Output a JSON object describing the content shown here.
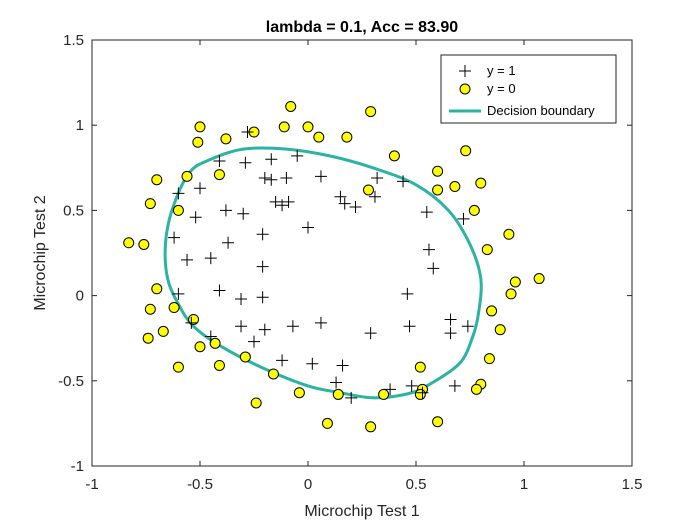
{
  "chart_data": {
    "type": "scatter",
    "title": "lambda = 0.1, Acc = 83.90",
    "xlabel": "Microchip Test 1",
    "ylabel": "Microchip Test 2",
    "xlim": [
      -1,
      1.5
    ],
    "ylim": [
      -1,
      1.5
    ],
    "xticks": [
      -1,
      -0.5,
      0,
      0.5,
      1,
      1.5
    ],
    "yticks": [
      -1,
      -0.5,
      0,
      0.5,
      1,
      1.5
    ],
    "xtick_labels": [
      "-1",
      "-0.5",
      "0",
      "0.5",
      "1",
      "1.5"
    ],
    "ytick_labels": [
      "-1",
      "-0.5",
      "0",
      "0.5",
      "1",
      "1.5"
    ],
    "grid": false,
    "legend_position": "top-right",
    "colors": {
      "positive_marker": "#000000",
      "negative_fill": "#ffff00",
      "negative_edge": "#000000",
      "boundary": "#2bb3a3",
      "axes": "#262626"
    },
    "series": [
      {
        "name": "y = 1",
        "marker": "plus",
        "points": [
          [
            -0.28,
            0.96
          ],
          [
            -0.41,
            0.79
          ],
          [
            -0.29,
            0.78
          ],
          [
            -0.17,
            0.8
          ],
          [
            -0.05,
            0.82
          ],
          [
            -0.2,
            0.69
          ],
          [
            -0.17,
            0.68
          ],
          [
            -0.1,
            0.69
          ],
          [
            -0.5,
            0.63
          ],
          [
            -0.6,
            0.6
          ],
          [
            -0.52,
            0.46
          ],
          [
            -0.38,
            0.5
          ],
          [
            -0.3,
            0.48
          ],
          [
            -0.15,
            0.55
          ],
          [
            -0.09,
            0.55
          ],
          [
            -0.21,
            0.36
          ],
          [
            -0.37,
            0.31
          ],
          [
            -0.12,
            0.53
          ],
          [
            0.06,
            0.7
          ],
          [
            0.15,
            0.58
          ],
          [
            0.17,
            0.54
          ],
          [
            0.22,
            0.52
          ],
          [
            0.32,
            0.69
          ],
          [
            0.31,
            0.58
          ],
          [
            0.44,
            0.67
          ],
          [
            0.55,
            0.49
          ],
          [
            0.72,
            0.45
          ],
          [
            -0.62,
            0.34
          ],
          [
            -0.56,
            0.21
          ],
          [
            -0.45,
            0.22
          ],
          [
            -0.21,
            0.17
          ],
          [
            -0.6,
            0.01
          ],
          [
            -0.41,
            0.03
          ],
          [
            -0.31,
            -0.02
          ],
          [
            -0.21,
            -0.01
          ],
          [
            0.0,
            0.4
          ],
          [
            0.56,
            0.27
          ],
          [
            0.58,
            0.16
          ],
          [
            0.46,
            0.01
          ],
          [
            -0.54,
            -0.16
          ],
          [
            -0.45,
            -0.24
          ],
          [
            -0.31,
            -0.18
          ],
          [
            -0.25,
            -0.27
          ],
          [
            -0.2,
            -0.2
          ],
          [
            -0.07,
            -0.18
          ],
          [
            0.06,
            -0.16
          ],
          [
            0.16,
            -0.41
          ],
          [
            0.29,
            -0.22
          ],
          [
            0.47,
            -0.18
          ],
          [
            0.66,
            -0.14
          ],
          [
            0.74,
            -0.18
          ],
          [
            0.66,
            -0.22
          ],
          [
            -0.12,
            -0.38
          ],
          [
            0.02,
            -0.4
          ],
          [
            0.13,
            -0.51
          ],
          [
            0.2,
            -0.6
          ],
          [
            0.38,
            -0.55
          ],
          [
            0.48,
            -0.53
          ],
          [
            0.53,
            -0.57
          ],
          [
            0.68,
            -0.53
          ]
        ]
      },
      {
        "name": "y = 0",
        "marker": "circle",
        "points": [
          [
            -0.08,
            1.11
          ],
          [
            -0.11,
            0.99
          ],
          [
            0.0,
            0.99
          ],
          [
            0.29,
            1.08
          ],
          [
            -0.5,
            0.99
          ],
          [
            -0.38,
            0.92
          ],
          [
            -0.25,
            0.96
          ],
          [
            0.05,
            0.93
          ],
          [
            0.18,
            0.93
          ],
          [
            -0.51,
            0.9
          ],
          [
            0.4,
            0.82
          ],
          [
            0.6,
            0.73
          ],
          [
            0.73,
            0.85
          ],
          [
            0.6,
            0.62
          ],
          [
            0.68,
            0.64
          ],
          [
            0.28,
            0.62
          ],
          [
            -0.41,
            0.71
          ],
          [
            -0.56,
            0.7
          ],
          [
            -0.7,
            0.68
          ],
          [
            0.8,
            0.66
          ],
          [
            -0.73,
            0.54
          ],
          [
            0.77,
            0.5
          ],
          [
            -0.6,
            0.5
          ],
          [
            -0.83,
            0.31
          ],
          [
            -0.76,
            0.3
          ],
          [
            0.83,
            0.27
          ],
          [
            0.93,
            0.36
          ],
          [
            0.96,
            0.08
          ],
          [
            1.07,
            0.1
          ],
          [
            0.94,
            0.01
          ],
          [
            -0.7,
            0.04
          ],
          [
            -0.62,
            -0.07
          ],
          [
            -0.73,
            -0.08
          ],
          [
            -0.53,
            -0.14
          ],
          [
            -0.67,
            -0.21
          ],
          [
            0.85,
            -0.09
          ],
          [
            0.89,
            -0.2
          ],
          [
            0.84,
            -0.37
          ],
          [
            -0.74,
            -0.25
          ],
          [
            -0.43,
            -0.28
          ],
          [
            -0.5,
            -0.3
          ],
          [
            -0.29,
            -0.36
          ],
          [
            -0.6,
            -0.42
          ],
          [
            -0.41,
            -0.41
          ],
          [
            -0.16,
            -0.46
          ],
          [
            -0.04,
            -0.57
          ],
          [
            0.14,
            -0.58
          ],
          [
            0.35,
            -0.58
          ],
          [
            0.52,
            -0.42
          ],
          [
            0.53,
            -0.55
          ],
          [
            0.52,
            -0.58
          ],
          [
            0.6,
            -0.74
          ],
          [
            0.8,
            -0.52
          ],
          [
            0.78,
            -0.55
          ],
          [
            0.09,
            -0.75
          ],
          [
            0.29,
            -0.77
          ],
          [
            -0.24,
            -0.63
          ]
        ]
      },
      {
        "name": "Decision boundary",
        "marker": "line",
        "points": [
          [
            -0.55,
            0.72
          ],
          [
            -0.45,
            0.8
          ],
          [
            -0.3,
            0.86
          ],
          [
            -0.1,
            0.86
          ],
          [
            0.1,
            0.82
          ],
          [
            0.3,
            0.75
          ],
          [
            0.5,
            0.65
          ],
          [
            0.65,
            0.5
          ],
          [
            0.75,
            0.3
          ],
          [
            0.8,
            0.1
          ],
          [
            0.79,
            -0.1
          ],
          [
            0.76,
            -0.25
          ],
          [
            0.7,
            -0.4
          ],
          [
            0.55,
            -0.53
          ],
          [
            0.45,
            -0.58
          ],
          [
            0.3,
            -0.6
          ],
          [
            0.15,
            -0.57
          ],
          [
            0.0,
            -0.53
          ],
          [
            -0.2,
            -0.43
          ],
          [
            -0.4,
            -0.3
          ],
          [
            -0.53,
            -0.18
          ],
          [
            -0.6,
            -0.05
          ],
          [
            -0.65,
            0.1
          ],
          [
            -0.66,
            0.3
          ],
          [
            -0.63,
            0.5
          ],
          [
            -0.55,
            0.72
          ]
        ]
      }
    ]
  }
}
